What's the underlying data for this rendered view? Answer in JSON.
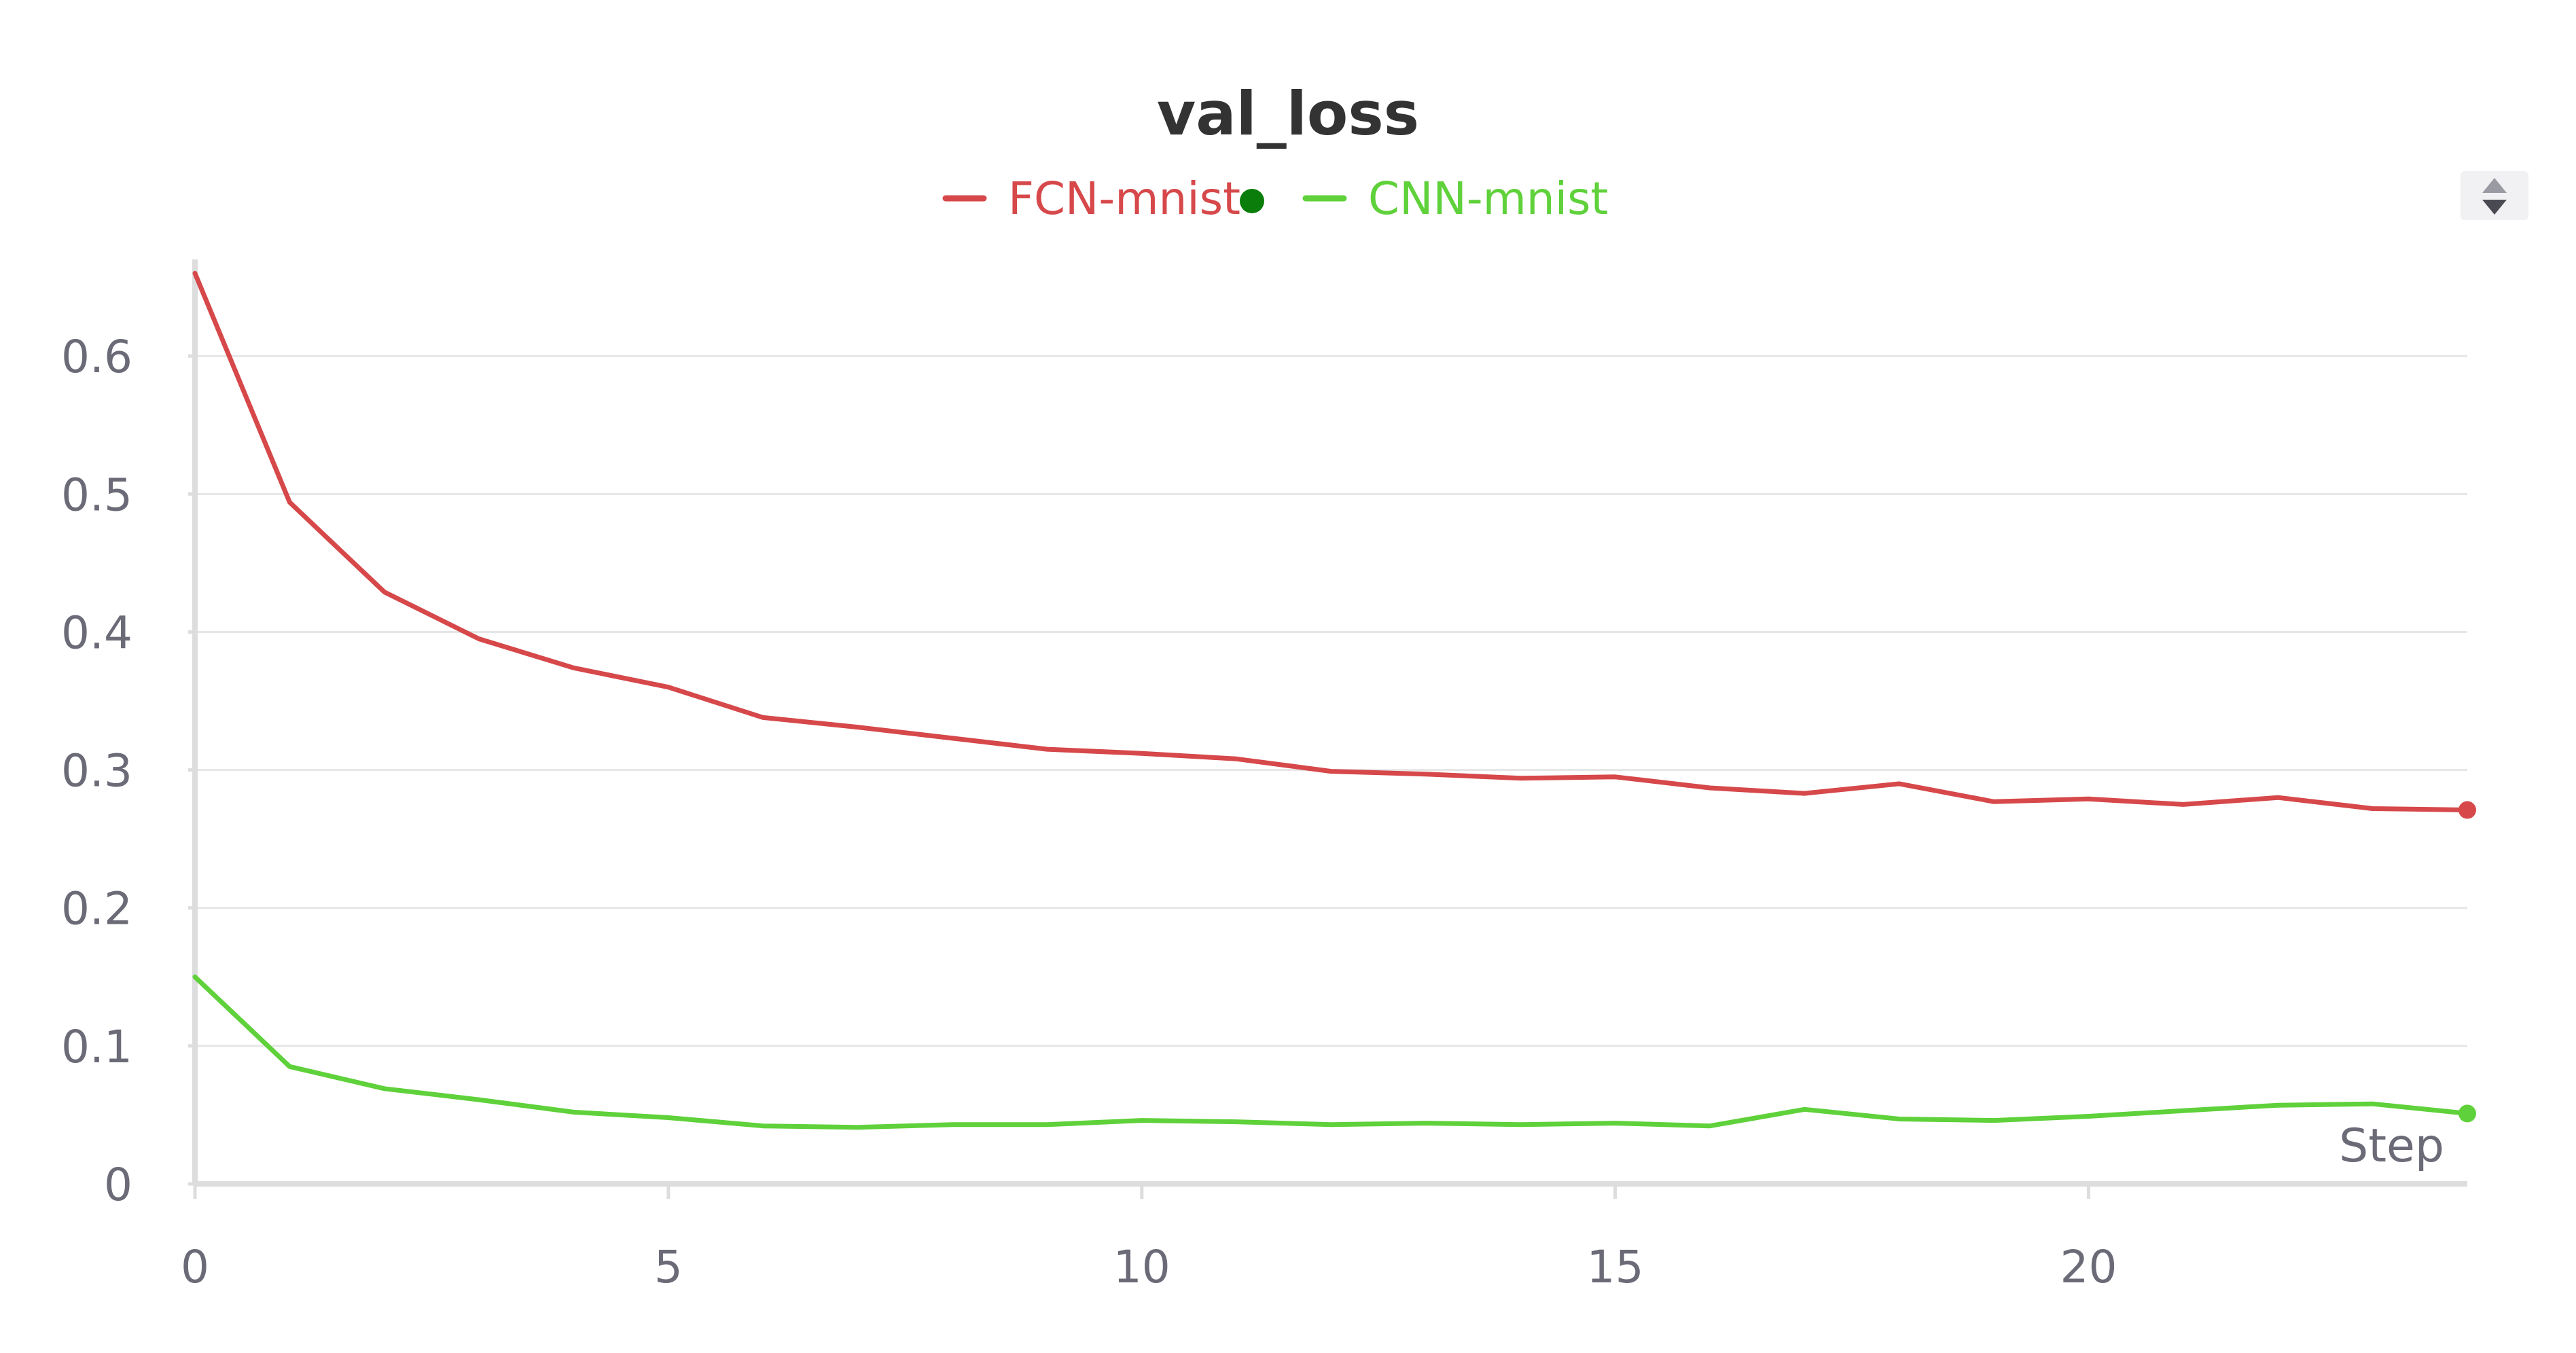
{
  "chart_data": {
    "type": "line",
    "title": "val_loss",
    "xlabel": "Step",
    "ylabel": "",
    "xlim": [
      0,
      24
    ],
    "ylim": [
      0,
      0.67
    ],
    "x_ticks": [
      "0",
      "5",
      "10",
      "15",
      "20"
    ],
    "y_ticks": [
      "0",
      "0.1",
      "0.2",
      "0.3",
      "0.4",
      "0.5",
      "0.6"
    ],
    "grid": "horizontal",
    "legend_position": "top-center",
    "x": [
      0,
      1,
      2,
      3,
      4,
      5,
      6,
      7,
      8,
      9,
      10,
      11,
      12,
      13,
      14,
      15,
      16,
      17,
      18,
      19,
      20,
      21,
      22,
      23,
      24
    ],
    "series": [
      {
        "name": "FCN-mnist",
        "color": "#d6484a",
        "values": [
          0.66,
          0.494,
          0.429,
          0.395,
          0.374,
          0.36,
          0.338,
          0.331,
          0.323,
          0.315,
          0.312,
          0.308,
          0.299,
          0.297,
          0.294,
          0.295,
          0.287,
          0.283,
          0.29,
          0.277,
          0.279,
          0.275,
          0.28,
          0.272,
          0.271
        ]
      },
      {
        "name": "CNN-mnist",
        "color": "#5fd13a",
        "values": [
          0.15,
          0.085,
          0.069,
          0.061,
          0.052,
          0.048,
          0.042,
          0.041,
          0.043,
          0.043,
          0.046,
          0.045,
          0.043,
          0.044,
          0.043,
          0.044,
          0.042,
          0.054,
          0.047,
          0.046,
          0.049,
          0.053,
          0.057,
          0.058,
          0.051
        ]
      }
    ],
    "legend_marker_color": "#0a7d0a",
    "axis_color": "#dddddd",
    "grid_color": "#e6e6e6",
    "tick_color": "#6b6b78"
  },
  "controls": {
    "sort_icon": "up-down-arrows-icon"
  }
}
